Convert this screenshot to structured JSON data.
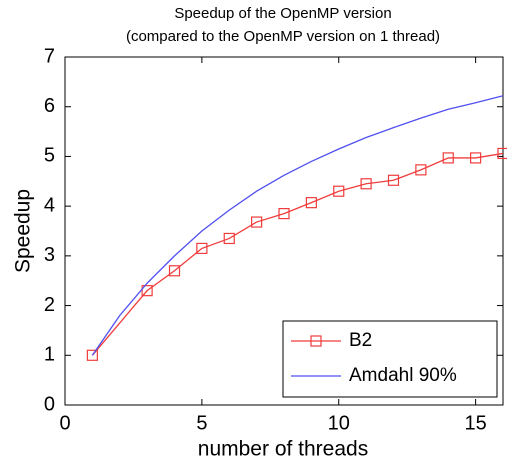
{
  "chart_data": {
    "type": "line",
    "title": "Speedup of the OpenMP version",
    "subtitle": "(compared to the OpenMP version on 1 thread)",
    "x_label": "number of threads",
    "y_label": "Speedup",
    "xlim": [
      0,
      16
    ],
    "xticks": [
      0,
      5,
      10,
      15
    ],
    "ylim": [
      0,
      7
    ],
    "yticks": [
      0,
      1,
      2,
      3,
      4,
      5,
      6,
      7
    ],
    "legend": "lower right",
    "series": [
      {
        "name": "B2",
        "color": "#f03c3c",
        "marker": "square",
        "x": [
          1,
          3,
          4,
          5,
          6,
          7,
          8,
          9,
          10,
          11,
          12,
          13,
          14,
          15,
          16
        ],
        "values": [
          1.0,
          2.3,
          2.7,
          3.15,
          3.35,
          3.68,
          3.85,
          4.07,
          4.3,
          4.45,
          4.52,
          4.73,
          4.97,
          4.97,
          5.06
        ]
      },
      {
        "name": "Amdahl 90%",
        "color": "#5050f0",
        "x": [
          1,
          2,
          3,
          4,
          5,
          6,
          7,
          8,
          9,
          10,
          11,
          12,
          13,
          14,
          15,
          16
        ],
        "values": [
          1.0,
          1.8,
          2.45,
          3.0,
          3.5,
          3.92,
          4.3,
          4.62,
          4.9,
          5.15,
          5.38,
          5.58,
          5.77,
          5.95,
          6.08,
          6.22
        ]
      }
    ]
  }
}
